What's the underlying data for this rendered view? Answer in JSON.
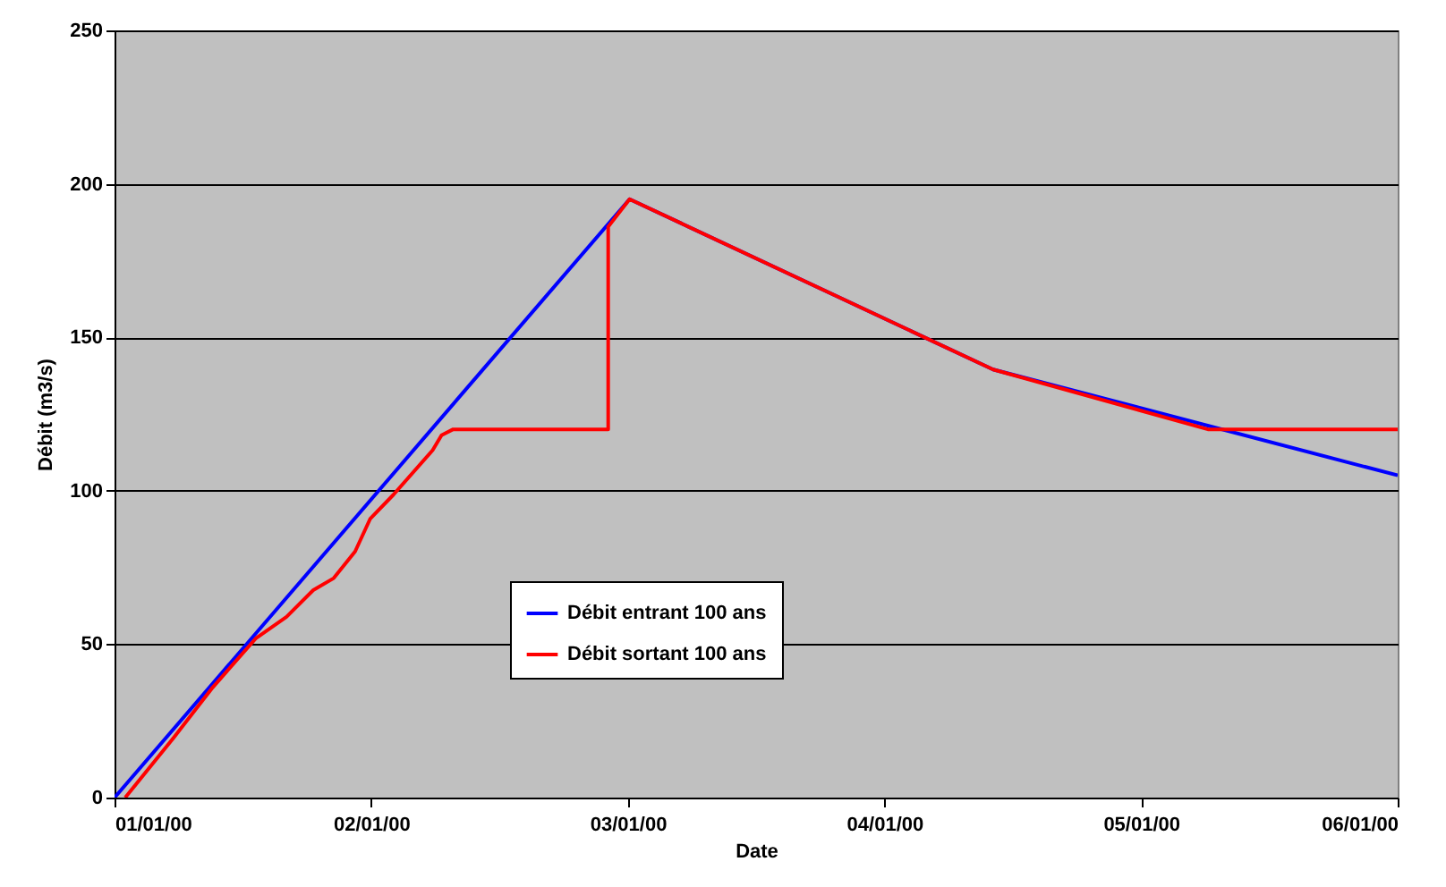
{
  "chart_data": {
    "type": "line",
    "xlabel": "Date",
    "ylabel": "Débit (m3/s)",
    "xlim": [
      "2000-01-01",
      "2000-01-06"
    ],
    "xticks": [
      {
        "value": "2000-01-01",
        "label": "01/01/00"
      },
      {
        "value": "2000-01-02",
        "label": "02/01/00"
      },
      {
        "value": "2000-01-03",
        "label": "03/01/00"
      },
      {
        "value": "2000-01-04",
        "label": "04/01/00"
      },
      {
        "value": "2000-01-05",
        "label": "05/01/00"
      },
      {
        "value": "2000-01-06",
        "label": "06/01/00"
      }
    ],
    "ylim": [
      0,
      250
    ],
    "yticks": [
      0,
      50,
      100,
      150,
      200,
      250
    ],
    "grid": "y",
    "legend": "bottom",
    "series": [
      {
        "name": "Débit entrant 100 ans",
        "color": "#0000ff",
        "x": [
          "2000-01-01",
          "2000-01-03T00:10",
          "2000-01-04T10:10",
          "2000-01-06"
        ],
        "values": [
          0,
          195,
          139.5,
          105
        ]
      },
      {
        "name": "Débit sortant 100 ans",
        "color": "#ff0000",
        "x": [
          "2000-01-01T01:00",
          "2000-01-01T05:30",
          "2000-01-01T09:05",
          "2000-01-01T13:15",
          "2000-01-01T16:05",
          "2000-01-01T18:35",
          "2000-01-01T20:30",
          "2000-01-01T22:30",
          "2000-01-01T23:55",
          "2000-01-02T02:05",
          "2000-01-02T05:45",
          "2000-01-02T06:35",
          "2000-01-02T07:40",
          "2000-01-02T22:10",
          "2000-01-02T22:10",
          "2000-01-03T00:10",
          "2000-01-04T10:10",
          "2000-01-05T06:15",
          "2000-01-06"
        ],
        "values": [
          0,
          19.4,
          35.5,
          52,
          58.9,
          67.6,
          71.5,
          80.2,
          90.9,
          98.7,
          113.2,
          118.1,
          120,
          120,
          186,
          195,
          139.5,
          120,
          120
        ]
      }
    ]
  }
}
